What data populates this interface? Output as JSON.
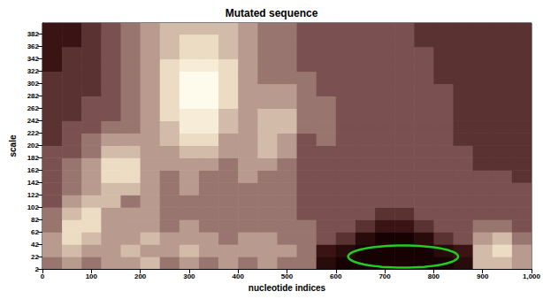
{
  "chart_data": {
    "type": "heatmap",
    "title": "Mutated sequence",
    "x_label": "nucleotide indices",
    "y_label": "scale",
    "xlim": [
      0,
      1000
    ],
    "xticks": [
      0,
      100,
      200,
      300,
      400,
      500,
      600,
      700,
      800,
      900,
      1000
    ],
    "ylim": [
      2,
      400
    ],
    "yticks": [
      2,
      22,
      42,
      62,
      82,
      102,
      122,
      142,
      162,
      182,
      202,
      222,
      242,
      262,
      282,
      302,
      322,
      342,
      362,
      382
    ],
    "grid": false,
    "x_edges": [
      0,
      40,
      80,
      120,
      160,
      200,
      240,
      280,
      320,
      360,
      400,
      440,
      480,
      520,
      560,
      600,
      640,
      680,
      720,
      760,
      800,
      840,
      880,
      920,
      960,
      1000
    ],
    "y_edges": [
      2,
      22,
      42,
      62,
      82,
      102,
      122,
      142,
      162,
      182,
      202,
      222,
      242,
      262,
      282,
      302,
      322,
      342,
      362,
      382,
      400
    ],
    "value_range": [
      0,
      10
    ],
    "cells": [
      [
        5,
        6,
        5,
        6,
        6,
        7,
        5,
        6,
        5,
        6,
        5,
        6,
        5,
        5,
        1,
        0,
        0,
        0,
        0,
        0,
        0,
        1,
        7,
        7,
        6
      ],
      [
        6,
        7,
        6,
        6,
        7,
        6,
        6,
        7,
        6,
        6,
        6,
        6,
        6,
        5,
        2,
        1,
        0,
        0,
        0,
        0,
        1,
        2,
        7,
        8,
        6
      ],
      [
        6,
        8,
        7,
        6,
        6,
        7,
        6,
        6,
        6,
        5,
        6,
        6,
        5,
        5,
        4,
        3,
        1,
        0,
        0,
        1,
        3,
        4,
        6,
        7,
        5
      ],
      [
        5,
        8,
        8,
        6,
        6,
        6,
        5,
        6,
        5,
        5,
        5,
        5,
        5,
        5,
        4,
        4,
        3,
        2,
        2,
        3,
        4,
        4,
        5,
        5,
        4
      ],
      [
        5,
        7,
        8,
        6,
        6,
        6,
        5,
        5,
        5,
        5,
        5,
        5,
        5,
        4,
        4,
        4,
        4,
        3,
        3,
        4,
        4,
        4,
        4,
        4,
        4
      ],
      [
        4,
        6,
        7,
        7,
        5,
        6,
        5,
        5,
        5,
        5,
        5,
        5,
        5,
        4,
        4,
        4,
        4,
        4,
        4,
        4,
        4,
        4,
        4,
        4,
        4
      ],
      [
        4,
        5,
        6,
        7,
        7,
        6,
        5,
        6,
        5,
        5,
        5,
        5,
        5,
        4,
        4,
        4,
        4,
        4,
        4,
        4,
        4,
        4,
        4,
        4,
        4
      ],
      [
        4,
        5,
        6,
        8,
        8,
        6,
        5,
        6,
        5,
        5,
        6,
        5,
        5,
        4,
        4,
        4,
        4,
        4,
        4,
        4,
        4,
        4,
        4,
        4,
        3
      ],
      [
        4,
        5,
        6,
        8,
        8,
        6,
        6,
        6,
        6,
        5,
        6,
        6,
        5,
        4,
        4,
        4,
        4,
        4,
        4,
        4,
        4,
        4,
        3,
        3,
        3
      ],
      [
        4,
        4,
        5,
        7,
        7,
        6,
        6,
        7,
        7,
        6,
        6,
        7,
        6,
        4,
        4,
        4,
        4,
        4,
        4,
        4,
        4,
        4,
        3,
        3,
        3
      ],
      [
        3,
        4,
        5,
        6,
        6,
        6,
        7,
        8,
        8,
        6,
        6,
        7,
        6,
        4,
        5,
        4,
        4,
        4,
        4,
        4,
        4,
        3,
        3,
        3,
        3
      ],
      [
        3,
        4,
        4,
        5,
        5,
        6,
        7,
        9,
        9,
        7,
        6,
        7,
        7,
        5,
        5,
        4,
        4,
        4,
        4,
        4,
        4,
        3,
        3,
        3,
        3
      ],
      [
        3,
        3,
        4,
        4,
        5,
        6,
        8,
        9,
        9,
        7,
        6,
        7,
        7,
        5,
        5,
        4,
        4,
        4,
        4,
        4,
        4,
        3,
        3,
        3,
        3
      ],
      [
        3,
        3,
        4,
        4,
        5,
        6,
        8,
        10,
        10,
        8,
        6,
        6,
        6,
        5,
        5,
        4,
        4,
        4,
        4,
        4,
        4,
        3,
        3,
        3,
        3
      ],
      [
        3,
        3,
        3,
        4,
        5,
        6,
        8,
        10,
        10,
        8,
        6,
        6,
        6,
        5,
        4,
        4,
        4,
        4,
        4,
        4,
        4,
        3,
        3,
        3,
        3
      ],
      [
        3,
        3,
        3,
        4,
        5,
        6,
        8,
        10,
        10,
        8,
        6,
        5,
        5,
        5,
        4,
        4,
        4,
        4,
        4,
        4,
        3,
        3,
        3,
        3,
        3
      ],
      [
        2,
        3,
        3,
        4,
        5,
        6,
        8,
        9,
        9,
        8,
        6,
        5,
        5,
        4,
        4,
        4,
        4,
        4,
        4,
        4,
        3,
        3,
        3,
        3,
        3
      ],
      [
        2,
        3,
        3,
        4,
        5,
        6,
        7,
        8,
        8,
        7,
        6,
        5,
        5,
        4,
        4,
        4,
        4,
        4,
        4,
        4,
        3,
        3,
        3,
        3,
        3
      ],
      [
        2,
        2,
        3,
        4,
        5,
        6,
        7,
        8,
        8,
        7,
        6,
        5,
        5,
        4,
        4,
        4,
        4,
        4,
        4,
        3,
        3,
        3,
        3,
        3,
        3
      ],
      [
        2,
        2,
        3,
        4,
        5,
        6,
        7,
        7,
        7,
        7,
        6,
        5,
        5,
        4,
        4,
        4,
        4,
        4,
        4,
        3,
        3,
        3,
        3,
        3,
        3
      ]
    ],
    "highlight": {
      "x": [
        625,
        850
      ],
      "y": [
        4,
        40
      ],
      "color": "#22cc22"
    }
  }
}
